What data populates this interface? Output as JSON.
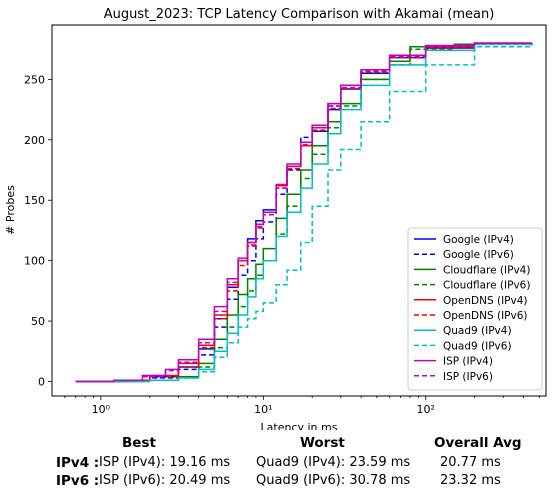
{
  "chart_data": {
    "type": "line",
    "title": "August_2023: TCP Latency Comparison with Akamai (mean)",
    "xlabel": "Latency in ms",
    "ylabel": "# Probes",
    "x_scale": "log",
    "xlim": [
      0.5,
      550
    ],
    "ylim": [
      -12,
      295
    ],
    "x_ticks": [
      1,
      10,
      100
    ],
    "x_tick_labels": [
      "10⁰",
      "10¹",
      "10²"
    ],
    "y_ticks": [
      0,
      50,
      100,
      150,
      200,
      250
    ],
    "legend_position": "lower-right",
    "grid": false,
    "series": [
      {
        "name": "Google (IPv4)",
        "color": "#0000ff",
        "dash": "solid",
        "points": [
          [
            0.7,
            0
          ],
          [
            1.5,
            1
          ],
          [
            2,
            4
          ],
          [
            3,
            12
          ],
          [
            4,
            27
          ],
          [
            5,
            52
          ],
          [
            6,
            78
          ],
          [
            7,
            100
          ],
          [
            8,
            118
          ],
          [
            9,
            133
          ],
          [
            10,
            142
          ],
          [
            12,
            162
          ],
          [
            14,
            178
          ],
          [
            17,
            195
          ],
          [
            20,
            207
          ],
          [
            25,
            225
          ],
          [
            30,
            242
          ],
          [
            40,
            255
          ],
          [
            60,
            268
          ],
          [
            100,
            276
          ],
          [
            200,
            279
          ],
          [
            450,
            280
          ]
        ]
      },
      {
        "name": "Google (IPv6)",
        "color": "#0000ff",
        "dash": "dashed",
        "points": [
          [
            0.7,
            0
          ],
          [
            1.5,
            1
          ],
          [
            2,
            3
          ],
          [
            3,
            10
          ],
          [
            4,
            22
          ],
          [
            5,
            45
          ],
          [
            6,
            68
          ],
          [
            7,
            88
          ],
          [
            8,
            100
          ],
          [
            9,
            118
          ],
          [
            10,
            132
          ],
          [
            12,
            155
          ],
          [
            14,
            175
          ],
          [
            17,
            202
          ],
          [
            20,
            212
          ],
          [
            25,
            228
          ],
          [
            30,
            243
          ],
          [
            40,
            256
          ],
          [
            60,
            268
          ],
          [
            100,
            276
          ],
          [
            200,
            279
          ],
          [
            450,
            280
          ]
        ]
      },
      {
        "name": "Cloudflare (IPv4)",
        "color": "#008000",
        "dash": "solid",
        "points": [
          [
            0.7,
            0
          ],
          [
            1.8,
            1
          ],
          [
            3,
            4
          ],
          [
            4,
            15
          ],
          [
            5,
            35
          ],
          [
            6,
            55
          ],
          [
            7,
            72
          ],
          [
            8,
            85
          ],
          [
            9,
            97
          ],
          [
            10,
            110
          ],
          [
            12,
            135
          ],
          [
            14,
            155
          ],
          [
            17,
            175
          ],
          [
            20,
            195
          ],
          [
            25,
            215
          ],
          [
            30,
            230
          ],
          [
            40,
            250
          ],
          [
            60,
            265
          ],
          [
            80,
            277
          ],
          [
            150,
            279
          ],
          [
            450,
            280
          ]
        ]
      },
      {
        "name": "Cloudflare (IPv6)",
        "color": "#008000",
        "dash": "dashed",
        "points": [
          [
            0.7,
            0
          ],
          [
            1.8,
            1
          ],
          [
            3,
            3
          ],
          [
            4,
            12
          ],
          [
            5,
            28
          ],
          [
            6,
            45
          ],
          [
            7,
            62
          ],
          [
            8,
            75
          ],
          [
            9,
            88
          ],
          [
            10,
            100
          ],
          [
            12,
            122
          ],
          [
            14,
            145
          ],
          [
            17,
            168
          ],
          [
            20,
            188
          ],
          [
            25,
            210
          ],
          [
            30,
            228
          ],
          [
            40,
            250
          ],
          [
            60,
            262
          ],
          [
            80,
            275
          ],
          [
            150,
            279
          ],
          [
            450,
            280
          ]
        ]
      },
      {
        "name": "OpenDNS (IPv4)",
        "color": "#ff0000",
        "dash": "solid",
        "points": [
          [
            0.7,
            0
          ],
          [
            1.3,
            1
          ],
          [
            2,
            5
          ],
          [
            3,
            15
          ],
          [
            4,
            30
          ],
          [
            5,
            55
          ],
          [
            6,
            80
          ],
          [
            7,
            100
          ],
          [
            8,
            115
          ],
          [
            9,
            130
          ],
          [
            10,
            140
          ],
          [
            12,
            162
          ],
          [
            14,
            178
          ],
          [
            17,
            195
          ],
          [
            20,
            210
          ],
          [
            25,
            230
          ],
          [
            30,
            245
          ],
          [
            40,
            258
          ],
          [
            60,
            270
          ],
          [
            100,
            277
          ],
          [
            200,
            280
          ],
          [
            450,
            280
          ]
        ]
      },
      {
        "name": "OpenDNS (IPv6)",
        "color": "#ff0000",
        "dash": "dashed",
        "points": [
          [
            0.7,
            0
          ],
          [
            1.3,
            1
          ],
          [
            2,
            4
          ],
          [
            3,
            12
          ],
          [
            4,
            28
          ],
          [
            5,
            52
          ],
          [
            6,
            75
          ],
          [
            7,
            96
          ],
          [
            8,
            112
          ],
          [
            9,
            127
          ],
          [
            10,
            138
          ],
          [
            12,
            160
          ],
          [
            14,
            176
          ],
          [
            17,
            198
          ],
          [
            20,
            208
          ],
          [
            25,
            226
          ],
          [
            30,
            242
          ],
          [
            40,
            256
          ],
          [
            60,
            268
          ],
          [
            100,
            276
          ],
          [
            200,
            279
          ],
          [
            450,
            280
          ]
        ]
      },
      {
        "name": "Quad9 (IPv4)",
        "color": "#00bfbf",
        "dash": "solid",
        "points": [
          [
            0.7,
            0
          ],
          [
            2,
            1
          ],
          [
            3,
            3
          ],
          [
            4,
            10
          ],
          [
            5,
            25
          ],
          [
            6,
            40
          ],
          [
            7,
            55
          ],
          [
            8,
            70
          ],
          [
            9,
            85
          ],
          [
            10,
            100
          ],
          [
            12,
            120
          ],
          [
            14,
            140
          ],
          [
            17,
            160
          ],
          [
            20,
            180
          ],
          [
            25,
            205
          ],
          [
            30,
            225
          ],
          [
            40,
            245
          ],
          [
            60,
            262
          ],
          [
            100,
            274
          ],
          [
            200,
            279
          ],
          [
            450,
            280
          ]
        ]
      },
      {
        "name": "Quad9 (IPv6)",
        "color": "#00bfbf",
        "dash": "dashed",
        "points": [
          [
            0.7,
            0
          ],
          [
            2,
            1
          ],
          [
            3,
            3
          ],
          [
            4,
            8
          ],
          [
            5,
            20
          ],
          [
            6,
            32
          ],
          [
            7,
            45
          ],
          [
            8,
            52
          ],
          [
            9,
            58
          ],
          [
            10,
            65
          ],
          [
            12,
            80
          ],
          [
            14,
            92
          ],
          [
            17,
            115
          ],
          [
            20,
            145
          ],
          [
            25,
            175
          ],
          [
            30,
            192
          ],
          [
            40,
            215
          ],
          [
            60,
            240
          ],
          [
            100,
            262
          ],
          [
            200,
            277
          ],
          [
            450,
            280
          ]
        ]
      },
      {
        "name": "ISP (IPv4)",
        "color": "#bf00bf",
        "dash": "solid",
        "points": [
          [
            0.7,
            0
          ],
          [
            1.2,
            1
          ],
          [
            1.8,
            5
          ],
          [
            2.5,
            10
          ],
          [
            3,
            18
          ],
          [
            4,
            35
          ],
          [
            5,
            62
          ],
          [
            6,
            85
          ],
          [
            7,
            102
          ],
          [
            8,
            115
          ],
          [
            9,
            130
          ],
          [
            10,
            140
          ],
          [
            12,
            163
          ],
          [
            14,
            180
          ],
          [
            17,
            198
          ],
          [
            20,
            212
          ],
          [
            25,
            230
          ],
          [
            30,
            245
          ],
          [
            40,
            258
          ],
          [
            60,
            270
          ],
          [
            100,
            278
          ],
          [
            200,
            280
          ],
          [
            450,
            280
          ]
        ]
      },
      {
        "name": "ISP (IPv6)",
        "color": "#bf00bf",
        "dash": "dashed",
        "points": [
          [
            0.7,
            0
          ],
          [
            1.2,
            1
          ],
          [
            1.8,
            4
          ],
          [
            2.5,
            9
          ],
          [
            3,
            16
          ],
          [
            4,
            32
          ],
          [
            5,
            58
          ],
          [
            6,
            82
          ],
          [
            7,
            100
          ],
          [
            8,
            113
          ],
          [
            9,
            128
          ],
          [
            10,
            138
          ],
          [
            12,
            160
          ],
          [
            14,
            178
          ],
          [
            17,
            196
          ],
          [
            20,
            210
          ],
          [
            25,
            228
          ],
          [
            30,
            243
          ],
          [
            40,
            257
          ],
          [
            60,
            269
          ],
          [
            100,
            277
          ],
          [
            200,
            280
          ],
          [
            450,
            280
          ]
        ]
      }
    ]
  },
  "summary": {
    "headers": {
      "best": "Best",
      "worst": "Worst",
      "avg": "Overall Avg"
    },
    "rows": [
      {
        "label": "IPv4 :",
        "best": "ISP (IPv4): 19.16 ms",
        "worst": "Quad9 (IPv4): 23.59 ms",
        "avg": "20.77 ms"
      },
      {
        "label": "IPv6 :",
        "best": "ISP (IPv6): 20.49 ms",
        "worst": "Quad9 (IPv6): 30.78 ms",
        "avg": "23.32 ms"
      }
    ]
  }
}
